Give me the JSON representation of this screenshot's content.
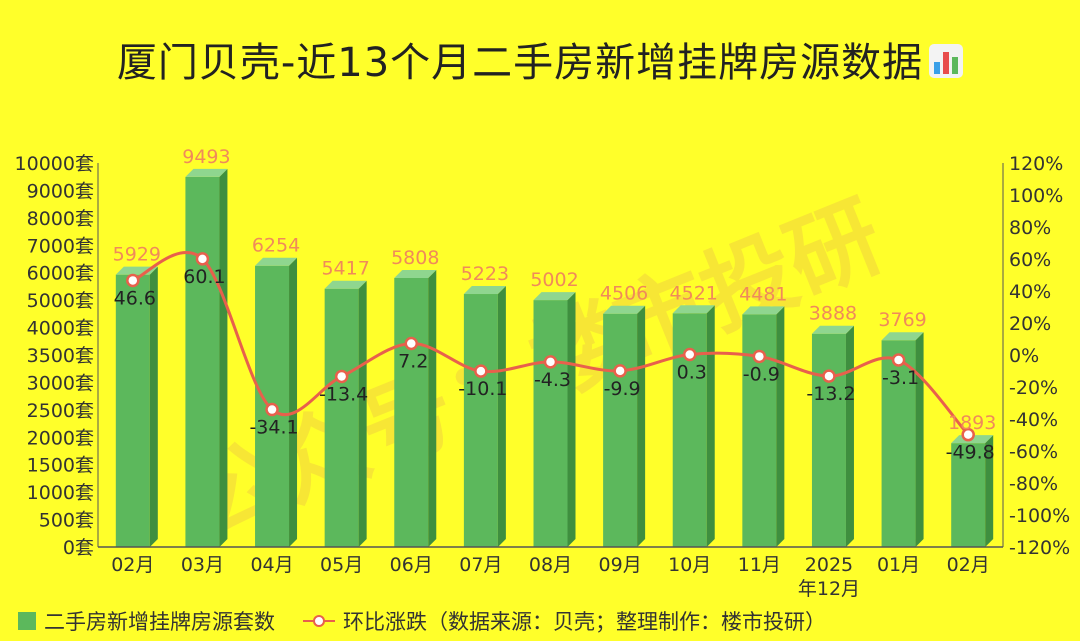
{
  "title": "厦门贝壳-近13个月二手房新增挂牌房源数据",
  "watermark": "公众号：楼市投研",
  "chart_data": {
    "type": "bar",
    "categories": [
      "02月",
      "03月",
      "04月",
      "05月",
      "06月",
      "07月",
      "08月",
      "09月",
      "10月",
      "11月",
      "2025\n年12月",
      "01月",
      "02月"
    ],
    "series": [
      {
        "name": "二手房新增挂牌房源套数",
        "kind": "bar",
        "axis": "left",
        "color": "#5cb85c",
        "values": [
          5929,
          9493,
          6254,
          5417,
          5808,
          5223,
          5002,
          4506,
          4521,
          4481,
          3888,
          3769,
          1893
        ]
      },
      {
        "name": "环比涨跌（数据来源：贝壳；整理制作：楼市投研）",
        "kind": "line",
        "axis": "right",
        "color": "#e8604c",
        "values": [
          46.6,
          60.1,
          -34.1,
          -13.4,
          7.2,
          -10.1,
          -4.3,
          -9.9,
          0.3,
          -0.9,
          -13.2,
          -3.1,
          -49.8
        ]
      }
    ],
    "bar_labels": [
      "5929",
      "9493",
      "6254",
      "5417",
      "5808",
      "5223",
      "5002",
      "4506",
      "4521",
      "4481",
      "3888",
      "3769",
      "1893"
    ],
    "line_labels": [
      "46.6",
      "60.1",
      "-34.1",
      "-13.4",
      "7.2",
      "-10.1",
      "-4.3",
      "-9.9",
      "0.3",
      "-0.9",
      "-13.2",
      "-3.1",
      "-49.8"
    ],
    "y_left_ticks": [
      "0套",
      "500套",
      "1000套",
      "1500套",
      "2000套",
      "2500套",
      "3000套",
      "3500套",
      "4000套",
      "5000套",
      "6000套",
      "7000套",
      "8000套",
      "9000套",
      "10000套"
    ],
    "y_left_tick_values": [
      0,
      500,
      1000,
      1500,
      2000,
      2500,
      3000,
      3500,
      4000,
      5000,
      6000,
      7000,
      8000,
      9000,
      10000
    ],
    "y_right_ticks": [
      "120%",
      "100%",
      "80%",
      "60%",
      "40%",
      "20%",
      "0%",
      "-20%",
      "-40%",
      "-60%",
      "-80%",
      "-100%",
      "-120%"
    ],
    "y_right_range": [
      -120,
      120
    ],
    "legend_position": "bottom-left"
  }
}
